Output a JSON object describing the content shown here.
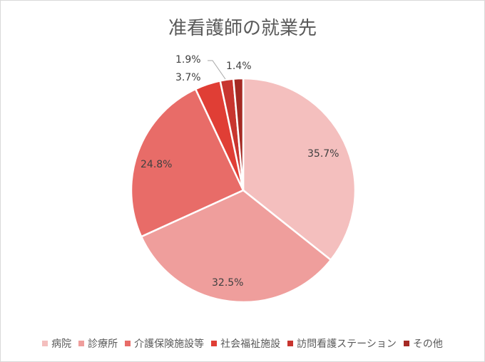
{
  "chart_data": {
    "type": "pie",
    "title": "准看護師の就業先",
    "categories": [
      "病院",
      "診療所",
      "介護保険施設等",
      "社会福祉施設",
      "訪問看護ステーション",
      "その他"
    ],
    "values": [
      35.7,
      32.5,
      24.8,
      3.7,
      1.9,
      1.4
    ],
    "labels": [
      "35.7%",
      "32.5%",
      "24.8%",
      "3.7%",
      "1.9%",
      "1.4%"
    ],
    "colors": [
      "#f4bfbe",
      "#ef9e9c",
      "#e86c68",
      "#e03e35",
      "#c8352f",
      "#a52a24"
    ],
    "legend_position": "bottom"
  },
  "legend": [
    {
      "label": "病院",
      "color": "#f4bfbe"
    },
    {
      "label": "診療所",
      "color": "#ef9e9c"
    },
    {
      "label": "介護保険施設等",
      "color": "#e86c68"
    },
    {
      "label": "社会福祉施設",
      "color": "#e03e35"
    },
    {
      "label": "訪問看護ステーション",
      "color": "#c8352f"
    },
    {
      "label": "その他",
      "color": "#a52a24"
    }
  ]
}
